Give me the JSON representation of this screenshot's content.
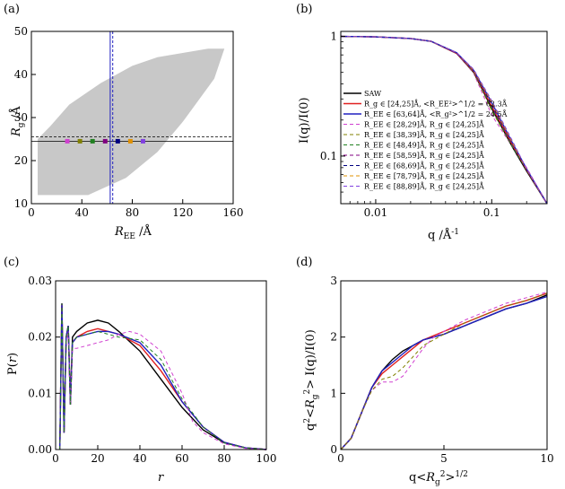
{
  "chart_data": [
    {
      "panel": "(a)",
      "type": "scatter",
      "xlabel": "R_EE /Å",
      "ylabel": "R_g /Å",
      "xlim": [
        0,
        160
      ],
      "ylim": [
        10,
        50
      ],
      "xticks": [
        0,
        40,
        80,
        120,
        160
      ],
      "yticks": [
        10,
        20,
        30,
        40,
        50
      ],
      "region_polygon": [
        [
          5,
          12
        ],
        [
          5,
          25
        ],
        [
          15,
          28
        ],
        [
          30,
          33
        ],
        [
          55,
          38
        ],
        [
          80,
          42
        ],
        [
          100,
          44
        ],
        [
          140,
          46
        ],
        [
          153,
          46
        ],
        [
          145,
          39
        ],
        [
          120,
          29
        ],
        [
          100,
          22
        ],
        [
          75,
          16
        ],
        [
          45,
          12
        ],
        [
          20,
          12
        ]
      ],
      "region_color": "#c8c8c8",
      "hlines": [
        {
          "y": 24.5,
          "style": "solid"
        },
        {
          "y": 25.5,
          "style": "dashed"
        }
      ],
      "vlines": [
        {
          "x": 62.5,
          "color": "#2020c0"
        },
        {
          "x": 64.5,
          "color": "#2020c0",
          "style": "dashed"
        }
      ],
      "points": [
        {
          "x": 28.5,
          "y": 24.5,
          "color": "#d040d0"
        },
        {
          "x": 38.5,
          "y": 24.5,
          "color": "#808000"
        },
        {
          "x": 48.5,
          "y": 24.5,
          "color": "#208020"
        },
        {
          "x": 58.5,
          "y": 24.5,
          "color": "#800080"
        },
        {
          "x": 68.5,
          "y": 24.5,
          "color": "#000080"
        },
        {
          "x": 78.5,
          "y": 24.5,
          "color": "#e09000"
        },
        {
          "x": 88.5,
          "y": 24.5,
          "color": "#8040e0"
        }
      ]
    },
    {
      "panel": "(b)",
      "type": "line",
      "xscale": "log",
      "yscale": "log",
      "xlabel": "q /Å",
      "xlabel_sup": "-1",
      "ylabel": "I(q)/I(0)",
      "xlim": [
        0.005,
        0.3
      ],
      "ylim": [
        0.04,
        1.1
      ],
      "xticks": [
        0.01,
        0.1
      ],
      "xtick_labels": [
        "0.01",
        "0.1"
      ],
      "yticks": [
        0.1,
        1
      ],
      "ytick_labels": [
        "0.1",
        "1"
      ],
      "legend": [
        {
          "label": "SAW",
          "color": "#000000",
          "style": "solid"
        },
        {
          "label": "R_g ∈ [24,25]Å, <R_EE²>^1/2 = 62.3Å",
          "color": "#e02020",
          "style": "solid"
        },
        {
          "label": "R_EE ∈ [63,64]Å, <R_g²>^1/2 = 24.5Å",
          "color": "#2020c0",
          "style": "solid"
        },
        {
          "label": "R_EE ∈ [28,29]Å, R_g ∈ [24,25]Å",
          "color": "#d040d0",
          "style": "dashed"
        },
        {
          "label": "R_EE ∈ [38,39]Å, R_g ∈ [24,25]Å",
          "color": "#808000",
          "style": "dashed"
        },
        {
          "label": "R_EE ∈ [48,49]Å, R_g ∈ [24,25]Å",
          "color": "#208020",
          "style": "dashed"
        },
        {
          "label": "R_EE ∈ [58,59]Å, R_g ∈ [24,25]Å",
          "color": "#800080",
          "style": "dashed"
        },
        {
          "label": "R_EE ∈ [68,69]Å, R_g ∈ [24,25]Å",
          "color": "#000080",
          "style": "dashed"
        },
        {
          "label": "R_EE ∈ [78,79]Å, R_g ∈ [24,25]Å",
          "color": "#e09000",
          "style": "dashed"
        },
        {
          "label": "R_EE ∈ [88,89]Å, R_g ∈ [24,25]Å",
          "color": "#8040e0",
          "style": "dashed"
        }
      ],
      "series": [
        {
          "name": "SAW",
          "color": "#000000",
          "style": "solid",
          "x": [
            0.005,
            0.01,
            0.02,
            0.03,
            0.05,
            0.07,
            0.1,
            0.15,
            0.2,
            0.3
          ],
          "y": [
            1.0,
            0.99,
            0.96,
            0.91,
            0.72,
            0.5,
            0.25,
            0.12,
            0.075,
            0.04
          ]
        },
        {
          "name": "Rg",
          "color": "#e02020",
          "style": "solid",
          "x": [
            0.005,
            0.01,
            0.02,
            0.03,
            0.05,
            0.07,
            0.1,
            0.15,
            0.2,
            0.3
          ],
          "y": [
            1.0,
            0.99,
            0.96,
            0.91,
            0.72,
            0.51,
            0.26,
            0.125,
            0.077,
            0.04
          ]
        },
        {
          "name": "REE",
          "color": "#2020c0",
          "style": "solid",
          "x": [
            0.005,
            0.01,
            0.02,
            0.03,
            0.05,
            0.07,
            0.1,
            0.15,
            0.2,
            0.3
          ],
          "y": [
            1.0,
            0.99,
            0.96,
            0.91,
            0.73,
            0.52,
            0.28,
            0.13,
            0.078,
            0.04
          ]
        },
        {
          "name": "REE 28-29",
          "color": "#d040d0",
          "style": "dashed",
          "x": [
            0.005,
            0.01,
            0.02,
            0.03,
            0.05,
            0.07,
            0.1,
            0.15,
            0.2,
            0.3
          ],
          "y": [
            1.0,
            0.99,
            0.96,
            0.91,
            0.72,
            0.49,
            0.22,
            0.12,
            0.08,
            0.04
          ]
        },
        {
          "name": "REE 38-39",
          "color": "#808000",
          "style": "dashed",
          "x": [
            0.005,
            0.01,
            0.02,
            0.03,
            0.05,
            0.07,
            0.1,
            0.15,
            0.2,
            0.3
          ],
          "y": [
            1.0,
            0.99,
            0.96,
            0.91,
            0.72,
            0.5,
            0.24,
            0.12,
            0.078,
            0.04
          ]
        },
        {
          "name": "REE 48-49",
          "color": "#208020",
          "style": "dashed",
          "x": [
            0.005,
            0.01,
            0.02,
            0.03,
            0.05,
            0.07,
            0.1,
            0.15,
            0.2,
            0.3
          ],
          "y": [
            1.0,
            0.99,
            0.96,
            0.91,
            0.72,
            0.51,
            0.25,
            0.12,
            0.077,
            0.04
          ]
        },
        {
          "name": "REE 58-59",
          "color": "#800080",
          "style": "dashed",
          "x": [
            0.005,
            0.01,
            0.02,
            0.03,
            0.05,
            0.07,
            0.1,
            0.15,
            0.2,
            0.3
          ],
          "y": [
            1.0,
            0.99,
            0.96,
            0.91,
            0.72,
            0.51,
            0.26,
            0.125,
            0.077,
            0.04
          ]
        },
        {
          "name": "REE 68-69",
          "color": "#000080",
          "style": "dashed",
          "x": [
            0.005,
            0.01,
            0.02,
            0.03,
            0.05,
            0.07,
            0.1,
            0.15,
            0.2,
            0.3
          ],
          "y": [
            1.0,
            0.99,
            0.96,
            0.91,
            0.73,
            0.52,
            0.27,
            0.13,
            0.077,
            0.04
          ]
        },
        {
          "name": "REE 78-79",
          "color": "#e09000",
          "style": "dashed",
          "x": [
            0.005,
            0.01,
            0.02,
            0.03,
            0.05,
            0.07,
            0.1,
            0.15,
            0.2,
            0.3
          ],
          "y": [
            1.0,
            0.99,
            0.96,
            0.91,
            0.73,
            0.52,
            0.28,
            0.13,
            0.077,
            0.04
          ]
        },
        {
          "name": "REE 88-89",
          "color": "#8040e0",
          "style": "dashed",
          "x": [
            0.005,
            0.01,
            0.02,
            0.03,
            0.05,
            0.07,
            0.1,
            0.15,
            0.2,
            0.3
          ],
          "y": [
            1.0,
            0.99,
            0.96,
            0.91,
            0.73,
            0.53,
            0.29,
            0.135,
            0.078,
            0.04
          ]
        }
      ]
    },
    {
      "panel": "(c)",
      "type": "line",
      "xlabel": "r",
      "ylabel": "P(r)",
      "xlim": [
        0,
        100
      ],
      "ylim": [
        0,
        0.03
      ],
      "xticks": [
        0,
        20,
        40,
        60,
        80,
        100
      ],
      "yticks": [
        0.0,
        0.01,
        0.02,
        0.03
      ],
      "ytick_labels": [
        "0.00",
        "0.01",
        "0.02",
        "0.03"
      ],
      "series": [
        {
          "name": "SAW",
          "color": "#000000",
          "style": "solid",
          "x": [
            2,
            3,
            4,
            5,
            6,
            7,
            8,
            10,
            15,
            20,
            25,
            30,
            40,
            50,
            60,
            70,
            80,
            90,
            100
          ],
          "y": [
            0,
            0.026,
            0.003,
            0.02,
            0.022,
            0.008,
            0.02,
            0.021,
            0.0225,
            0.023,
            0.0225,
            0.021,
            0.0175,
            0.0125,
            0.0075,
            0.0035,
            0.0012,
            0.0003,
            0
          ]
        },
        {
          "name": "Rg",
          "color": "#e02020",
          "style": "solid",
          "x": [
            2,
            3,
            4,
            5,
            6,
            7,
            8,
            10,
            15,
            20,
            25,
            30,
            40,
            50,
            60,
            70,
            80,
            90,
            100
          ],
          "y": [
            0,
            0.026,
            0.003,
            0.02,
            0.022,
            0.008,
            0.019,
            0.02,
            0.021,
            0.0215,
            0.021,
            0.0205,
            0.0185,
            0.014,
            0.0085,
            0.004,
            0.0013,
            0.0003,
            0
          ]
        },
        {
          "name": "REE",
          "color": "#2020c0",
          "style": "solid",
          "x": [
            2,
            3,
            4,
            5,
            6,
            7,
            8,
            10,
            15,
            20,
            25,
            30,
            40,
            50,
            60,
            70,
            80,
            90,
            100
          ],
          "y": [
            0,
            0.026,
            0.003,
            0.02,
            0.022,
            0.008,
            0.019,
            0.02,
            0.0205,
            0.021,
            0.021,
            0.0205,
            0.019,
            0.015,
            0.0085,
            0.004,
            0.0013,
            0.0003,
            0
          ]
        },
        {
          "name": "REE 28-29",
          "color": "#d040d0",
          "style": "dashed",
          "x": [
            2,
            3,
            4,
            5,
            6,
            7,
            8,
            10,
            15,
            20,
            25,
            30,
            35,
            40,
            50,
            60,
            65,
            70,
            80,
            90,
            100
          ],
          "y": [
            0,
            0.026,
            0.003,
            0.019,
            0.021,
            0.008,
            0.018,
            0.018,
            0.0185,
            0.019,
            0.0195,
            0.0205,
            0.021,
            0.0205,
            0.0175,
            0.01,
            0.005,
            0.003,
            0.001,
            0.0002,
            0
          ]
        },
        {
          "name": "REE 48-49",
          "color": "#208020",
          "style": "dashed",
          "x": [
            2,
            3,
            4,
            5,
            6,
            7,
            8,
            10,
            15,
            20,
            25,
            30,
            40,
            50,
            60,
            70,
            80,
            90,
            100
          ],
          "y": [
            0,
            0.026,
            0.003,
            0.02,
            0.022,
            0.008,
            0.019,
            0.02,
            0.0205,
            0.021,
            0.0205,
            0.02,
            0.0195,
            0.016,
            0.009,
            0.004,
            0.0012,
            0.0003,
            0
          ]
        }
      ]
    },
    {
      "panel": "(d)",
      "type": "line",
      "xlabel": "q<R_g²>^1/2",
      "ylabel": "q²<R_g²> I(q)/I(0)",
      "xlim": [
        0,
        10
      ],
      "ylim": [
        0,
        3
      ],
      "xticks": [
        0,
        5,
        10
      ],
      "yticks": [
        0,
        1,
        2,
        3
      ],
      "series": [
        {
          "name": "SAW",
          "color": "#000000",
          "style": "solid",
          "x": [
            0,
            0.5,
            1,
            1.5,
            2,
            2.5,
            3,
            3.5,
            4,
            5,
            6,
            7,
            8,
            9,
            10
          ],
          "y": [
            0,
            0.2,
            0.65,
            1.1,
            1.4,
            1.6,
            1.75,
            1.85,
            1.95,
            2.05,
            2.2,
            2.35,
            2.5,
            2.6,
            2.75
          ]
        },
        {
          "name": "Rg",
          "color": "#e02020",
          "style": "solid",
          "x": [
            0,
            0.5,
            1,
            1.5,
            2,
            2.5,
            3,
            3.5,
            4,
            5,
            6,
            7,
            8,
            9,
            10
          ],
          "y": [
            0,
            0.2,
            0.65,
            1.1,
            1.35,
            1.5,
            1.65,
            1.8,
            1.95,
            2.1,
            2.25,
            2.4,
            2.55,
            2.65,
            2.78
          ]
        },
        {
          "name": "REE",
          "color": "#2020c0",
          "style": "solid",
          "x": [
            0,
            0.5,
            1,
            1.5,
            2,
            2.5,
            3,
            3.5,
            4,
            5,
            6,
            7,
            8,
            9,
            10
          ],
          "y": [
            0,
            0.2,
            0.65,
            1.1,
            1.4,
            1.55,
            1.7,
            1.85,
            1.95,
            2.05,
            2.2,
            2.35,
            2.5,
            2.6,
            2.72
          ]
        },
        {
          "name": "REE 28-29",
          "color": "#d040d0",
          "style": "dashed",
          "x": [
            0,
            0.5,
            1,
            1.5,
            2,
            2.5,
            3,
            3.5,
            4,
            4.5,
            5,
            6,
            7,
            8,
            9,
            10
          ],
          "y": [
            0,
            0.2,
            0.65,
            1.05,
            1.2,
            1.2,
            1.3,
            1.55,
            1.8,
            2.0,
            2.1,
            2.3,
            2.45,
            2.6,
            2.7,
            2.8
          ]
        },
        {
          "name": "REE 38-39",
          "color": "#808000",
          "style": "dashed",
          "x": [
            0,
            0.5,
            1,
            1.5,
            2,
            2.5,
            3,
            3.5,
            4,
            5,
            6,
            7,
            8,
            9,
            10
          ],
          "y": [
            0,
            0.2,
            0.65,
            1.05,
            1.25,
            1.3,
            1.45,
            1.65,
            1.85,
            2.05,
            2.25,
            2.4,
            2.55,
            2.65,
            2.78
          ]
        }
      ]
    }
  ],
  "panel_labels": {
    "a": "(a)",
    "b": "(b)",
    "c": "(c)",
    "d": "(d)"
  },
  "axis_texts": {
    "a_x_main": "R",
    "a_x_sub": "EE",
    "a_x_unit": " /Å",
    "a_y_main": "R",
    "a_y_sub": "g",
    "a_y_unit": " /Å",
    "b_x": "q /Å",
    "b_x_sup": "-1",
    "b_y": "I(q)/I(0)",
    "c_x": "r",
    "c_y_pre": "P(",
    "c_y_var": "r",
    "c_y_post": ")",
    "d_x_pre": "q<",
    "d_x_var": "R",
    "d_x_sub": "g",
    "d_x_sup": "2",
    "d_x_post": ">",
    "d_x_sup2": "1/2",
    "d_y_pre": "q",
    "d_y_sup": "2",
    "d_y_mid": "<",
    "d_y_var": "R",
    "d_y_sub": "g",
    "d_y_sup2": "2",
    "d_y_post": "> I(q)/I(0)"
  }
}
